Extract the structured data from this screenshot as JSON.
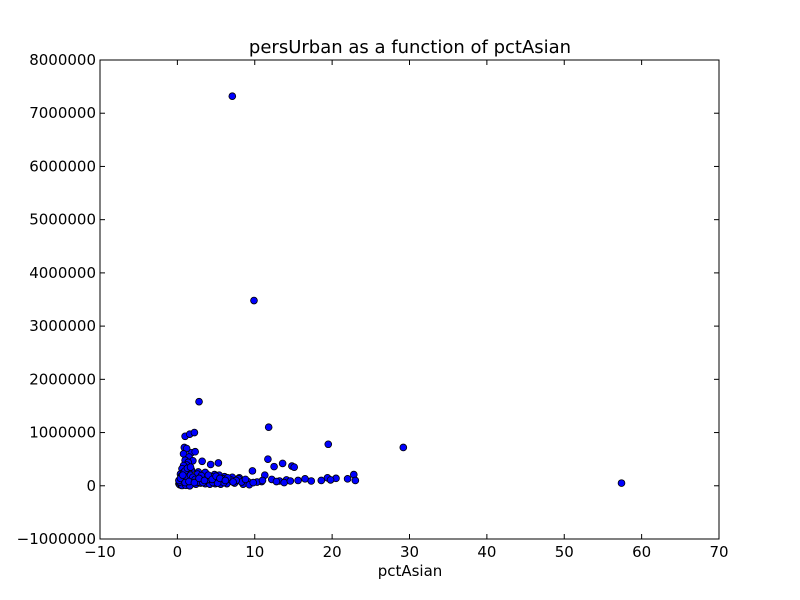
{
  "chart_data": {
    "type": "scatter",
    "title": "persUrban as a function of pctAsian",
    "xlabel": "pctAsian",
    "ylabel": "",
    "xlim": [
      -10,
      70
    ],
    "ylim": [
      -1000000,
      8000000
    ],
    "xticks": [
      -10,
      0,
      10,
      20,
      30,
      40,
      50,
      60,
      70
    ],
    "yticks": [
      -1000000,
      0,
      1000000,
      2000000,
      3000000,
      4000000,
      5000000,
      6000000,
      7000000,
      8000000
    ],
    "xtick_labels": [
      "−10",
      "0",
      "10",
      "20",
      "30",
      "40",
      "50",
      "60",
      "70"
    ],
    "ytick_labels": [
      "−1000000",
      "0",
      "1000000",
      "2000000",
      "3000000",
      "4000000",
      "5000000",
      "6000000",
      "7000000",
      "8000000"
    ],
    "grid": false,
    "marker_color": "#0000ff",
    "marker_edge": "#000000",
    "series": [
      {
        "points": [
          [
            7.1,
            7320000
          ],
          [
            9.9,
            3480000
          ],
          [
            2.8,
            1580000
          ],
          [
            11.8,
            1100000
          ],
          [
            19.5,
            780000
          ],
          [
            29.2,
            720000
          ],
          [
            57.4,
            50000
          ],
          [
            1.0,
            930000
          ],
          [
            1.6,
            970000
          ],
          [
            2.2,
            1000000
          ],
          [
            1.8,
            620000
          ],
          [
            2.3,
            640000
          ],
          [
            0.9,
            720000
          ],
          [
            1.2,
            700000
          ],
          [
            0.8,
            600000
          ],
          [
            1.5,
            540000
          ],
          [
            11.7,
            500000
          ],
          [
            1.0,
            480000
          ],
          [
            2.0,
            470000
          ],
          [
            3.2,
            460000
          ],
          [
            1.4,
            440000
          ],
          [
            5.3,
            430000
          ],
          [
            13.6,
            420000
          ],
          [
            4.3,
            400000
          ],
          [
            1.2,
            390000
          ],
          [
            0.8,
            380000
          ],
          [
            12.5,
            360000
          ],
          [
            14.8,
            370000
          ],
          [
            15.1,
            350000
          ],
          [
            0.6,
            320000
          ],
          [
            1.8,
            300000
          ],
          [
            9.7,
            280000
          ],
          [
            2.7,
            260000
          ],
          [
            3.6,
            250000
          ],
          [
            1.5,
            240000
          ],
          [
            0.4,
            220000
          ],
          [
            22.8,
            210000
          ],
          [
            11.3,
            200000
          ],
          [
            4.8,
            210000
          ],
          [
            5.4,
            200000
          ],
          [
            1.1,
            190000
          ],
          [
            2.5,
            180000
          ],
          [
            6.1,
            170000
          ],
          [
            7.1,
            160000
          ],
          [
            8.0,
            150000
          ],
          [
            20.5,
            140000
          ],
          [
            22.0,
            130000
          ],
          [
            16.5,
            130000
          ],
          [
            19.4,
            150000
          ],
          [
            3.4,
            150000
          ],
          [
            4.1,
            140000
          ],
          [
            0.9,
            150000
          ],
          [
            1.9,
            130000
          ],
          [
            12.2,
            120000
          ],
          [
            14.1,
            110000
          ],
          [
            15.6,
            100000
          ],
          [
            13.2,
            90000
          ],
          [
            10.9,
            80000
          ],
          [
            18.6,
            100000
          ],
          [
            19.8,
            110000
          ],
          [
            23.0,
            100000
          ],
          [
            17.3,
            90000
          ],
          [
            8.7,
            100000
          ],
          [
            9.1,
            80000
          ],
          [
            10.3,
            70000
          ],
          [
            6.6,
            80000
          ],
          [
            5.7,
            90000
          ],
          [
            4.7,
            100000
          ],
          [
            3.9,
            80000
          ],
          [
            2.9,
            90000
          ],
          [
            2.1,
            100000
          ],
          [
            1.3,
            110000
          ],
          [
            0.7,
            90000
          ],
          [
            0.4,
            60000
          ],
          [
            0.2,
            40000
          ],
          [
            0.3,
            20000
          ],
          [
            0.5,
            10000
          ],
          [
            0.9,
            30000
          ],
          [
            1.4,
            50000
          ],
          [
            1.9,
            40000
          ],
          [
            2.4,
            30000
          ],
          [
            3.0,
            50000
          ],
          [
            3.6,
            40000
          ],
          [
            4.2,
            30000
          ],
          [
            4.9,
            40000
          ],
          [
            5.6,
            30000
          ],
          [
            6.4,
            40000
          ],
          [
            7.4,
            50000
          ],
          [
            8.5,
            30000
          ],
          [
            9.3,
            20000
          ],
          [
            0.6,
            5000
          ],
          [
            1.1,
            8000
          ],
          [
            1.6,
            0
          ],
          [
            0.3,
            70000
          ],
          [
            0.6,
            120000
          ],
          [
            1.2,
            160000
          ],
          [
            1.7,
            200000
          ],
          [
            2.6,
            220000
          ],
          [
            3.1,
            190000
          ],
          [
            4.4,
            170000
          ],
          [
            5.1,
            120000
          ],
          [
            6.0,
            60000
          ],
          [
            6.9,
            110000
          ],
          [
            7.9,
            130000
          ],
          [
            8.3,
            70000
          ],
          [
            9.8,
            60000
          ],
          [
            11.0,
            100000
          ],
          [
            12.8,
            80000
          ],
          [
            13.8,
            60000
          ],
          [
            14.6,
            90000
          ],
          [
            0.2,
            100000
          ],
          [
            0.5,
            180000
          ],
          [
            0.8,
            250000
          ],
          [
            1.0,
            280000
          ],
          [
            1.3,
            330000
          ],
          [
            1.7,
            350000
          ],
          [
            2.0,
            160000
          ],
          [
            2.3,
            120000
          ],
          [
            2.7,
            70000
          ],
          [
            3.3,
            60000
          ],
          [
            3.8,
            110000
          ],
          [
            4.6,
            60000
          ],
          [
            5.2,
            50000
          ],
          [
            5.9,
            130000
          ],
          [
            6.5,
            150000
          ],
          [
            7.6,
            100000
          ],
          [
            0.4,
            140000
          ],
          [
            0.7,
            200000
          ],
          [
            1.0,
            60000
          ],
          [
            1.5,
            80000
          ],
          [
            2.2,
            60000
          ],
          [
            2.8,
            140000
          ],
          [
            3.5,
            100000
          ],
          [
            4.0,
            200000
          ],
          [
            4.5,
            120000
          ],
          [
            5.0,
            180000
          ],
          [
            5.5,
            140000
          ],
          [
            6.2,
            100000
          ],
          [
            7.2,
            70000
          ],
          [
            8.8,
            120000
          ]
        ]
      }
    ]
  }
}
